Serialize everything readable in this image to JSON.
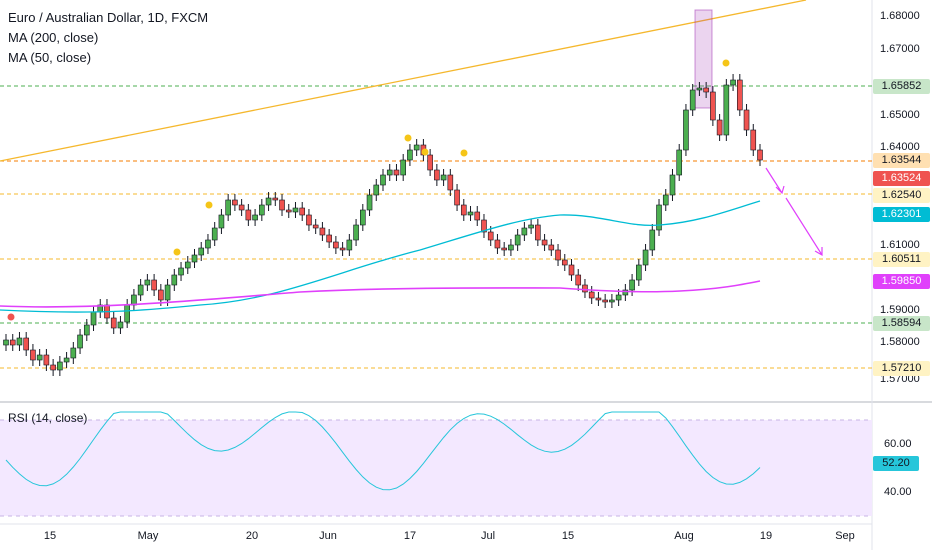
{
  "legend": {
    "title": "Euro / Australian Dollar, 1D, FXCM",
    "ma200": "MA (200, close)",
    "ma50": "MA (50, close)",
    "rsi": "RSI (14, close)"
  },
  "colors": {
    "up": "#26a69a",
    "up_fill": "#4caf50",
    "down": "#ef5350",
    "ma50": "#00bcd4",
    "ma200": "#e040fb",
    "trend": "#f5b82e",
    "rsi_line": "#26c6da",
    "rsi_fill": "#f3e8ff"
  },
  "price_axis": {
    "labels": [
      "1.68000",
      "1.67000",
      "1.65000",
      "1.64000",
      "1.61000",
      "1.59000",
      "1.58000",
      "1.57000"
    ]
  },
  "price_tags": [
    {
      "text": "1.65852",
      "bg": "#c8e6c9",
      "fg": "#131722"
    },
    {
      "text": "1.63544",
      "bg": "#ffe0b2",
      "fg": "#131722"
    },
    {
      "text": "1.63524",
      "bg": "#ef5350",
      "fg": "#ffffff"
    },
    {
      "text": "1.62540",
      "bg": "#fff3c4",
      "fg": "#131722"
    },
    {
      "text": "1.62301",
      "bg": "#00bcd4",
      "fg": "#ffffff"
    },
    {
      "text": "1.60511",
      "bg": "#fff3c4",
      "fg": "#131722"
    },
    {
      "text": "1.59850",
      "bg": "#e040fb",
      "fg": "#ffffff"
    },
    {
      "text": "1.58594",
      "bg": "#c8e6c9",
      "fg": "#131722"
    },
    {
      "text": "1.57210",
      "bg": "#fff3c4",
      "fg": "#131722"
    }
  ],
  "rsi_axis": {
    "labels": [
      "60.00",
      "40.00"
    ],
    "current": "52.20"
  },
  "x_axis": {
    "labels": [
      "15",
      "May",
      "20",
      "Jun",
      "17",
      "Jul",
      "15",
      "Aug",
      "19",
      "Sep"
    ]
  }
}
